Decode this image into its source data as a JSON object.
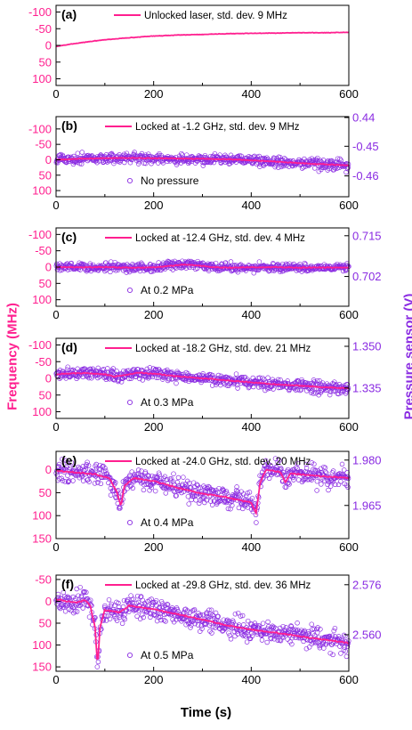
{
  "figure": {
    "xlabel": "Time (s)",
    "ylabel_left": "Frequency (MHz)",
    "ylabel_right": "Pressure sensor (V)",
    "colors": {
      "trace": "#ff1f8f",
      "scatter": "#8a2be2",
      "axis": "#000000"
    }
  },
  "chart_data": [
    {
      "type": "line",
      "panel_label": "(a)",
      "legend_line": "Unlocked laser, std. dev. 9 MHz",
      "x": [
        0,
        50,
        100,
        150,
        200,
        250,
        300,
        350,
        400,
        450,
        500,
        550,
        600
      ],
      "series": [
        {
          "values": [
            3,
            -8,
            -17,
            -23,
            -28,
            -31,
            -33,
            -35,
            -36,
            -37,
            -38,
            -38,
            -39
          ]
        }
      ],
      "xlim": [
        0,
        600
      ],
      "ylim": [
        120,
        -120
      ],
      "yticks": [
        -100,
        -50,
        0,
        50,
        100
      ],
      "xticks": [
        0,
        200,
        400,
        600
      ],
      "right_axis": null
    },
    {
      "type": "line",
      "panel_label": "(b)",
      "legend_line": "Locked at -1.2 GHz,  std. dev. 9 MHz",
      "legend_scatter": "No pressure",
      "x": [
        0,
        50,
        100,
        150,
        200,
        250,
        300,
        350,
        400,
        450,
        500,
        550,
        600
      ],
      "series": [
        {
          "values": [
            0,
            -3,
            -5,
            -6,
            -5,
            -4,
            -3,
            -2,
            2,
            6,
            11,
            15,
            18
          ]
        }
      ],
      "scatter_spread": 28,
      "xlim": [
        0,
        600
      ],
      "ylim": [
        120,
        -140
      ],
      "yticks": [
        -100,
        -50,
        0,
        50,
        100
      ],
      "xticks": [
        0,
        200,
        400,
        600
      ],
      "right_axis": {
        "ticks": [
          "0.44",
          "-0.45",
          "-0.46"
        ]
      }
    },
    {
      "type": "line",
      "panel_label": "(c)",
      "legend_line": "Locked at -12.4 GHz, std. dev. 4 MHz",
      "legend_scatter": "At 0.2 MPa",
      "x": [
        0,
        50,
        100,
        150,
        200,
        230,
        260,
        290,
        320,
        350,
        400,
        450,
        500,
        550,
        600
      ],
      "series": [
        {
          "values": [
            0,
            1,
            0,
            2,
            1,
            -3,
            -8,
            -5,
            0,
            2,
            1,
            0,
            2,
            1,
            2
          ]
        }
      ],
      "scatter_spread": 22,
      "xlim": [
        0,
        600
      ],
      "ylim": [
        120,
        -120
      ],
      "yticks": [
        -100,
        -50,
        0,
        50,
        100
      ],
      "xticks": [
        0,
        200,
        400,
        600
      ],
      "right_axis": {
        "ticks": [
          "0.715",
          "0.702"
        ]
      }
    },
    {
      "type": "line",
      "panel_label": "(d)",
      "legend_line": "Locked at -18.2 GHz, std. dev. 21 MHz",
      "legend_scatter": "At 0.3 MPa",
      "x": [
        0,
        30,
        60,
        100,
        120,
        140,
        170,
        200,
        250,
        300,
        350,
        400,
        450,
        500,
        550,
        600
      ],
      "series": [
        {
          "values": [
            -12,
            -15,
            -16,
            -12,
            -5,
            -10,
            -17,
            -14,
            -6,
            0,
            6,
            12,
            18,
            22,
            27,
            30
          ]
        }
      ],
      "scatter_spread": 30,
      "xlim": [
        0,
        600
      ],
      "ylim": [
        120,
        -120
      ],
      "yticks": [
        -100,
        -50,
        0,
        50,
        100
      ],
      "xticks": [
        0,
        200,
        400,
        600
      ],
      "right_axis": {
        "ticks": [
          "1.350",
          "1.335"
        ]
      }
    },
    {
      "type": "line",
      "panel_label": "(e)",
      "legend_line": "Locked at -24.0 GHz, std. dev. 20 MHz",
      "legend_scatter": "At 0.4 MPa",
      "x": [
        0,
        40,
        80,
        110,
        125,
        133,
        140,
        160,
        200,
        250,
        300,
        350,
        400,
        410,
        418,
        430,
        460,
        470,
        480,
        520,
        560,
        600
      ],
      "series": [
        {
          "values": [
            2,
            6,
            10,
            20,
            50,
            80,
            35,
            18,
            25,
            40,
            52,
            60,
            72,
            95,
            30,
            0,
            5,
            28,
            8,
            12,
            15,
            18
          ]
        }
      ],
      "scatter_spread": 40,
      "xlim": [
        0,
        600
      ],
      "ylim": [
        150,
        -40
      ],
      "yticks": [
        0,
        50,
        100,
        150
      ],
      "xticks": [
        0,
        200,
        400,
        600
      ],
      "right_axis": {
        "ticks": [
          "1.980",
          "1.965"
        ]
      }
    },
    {
      "type": "line",
      "panel_label": "(f)",
      "legend_line": "Locked at -29.8 GHz, std. dev. 36 MHz",
      "legend_scatter": "At 0.5 MPa",
      "x": [
        0,
        20,
        40,
        60,
        70,
        80,
        85,
        90,
        100,
        130,
        150,
        200,
        250,
        300,
        350,
        400,
        450,
        500,
        550,
        600
      ],
      "series": [
        {
          "values": [
            -5,
            0,
            3,
            -2,
            10,
            60,
            150,
            60,
            20,
            25,
            10,
            18,
            30,
            42,
            55,
            65,
            72,
            80,
            88,
            95
          ]
        }
      ],
      "scatter_spread": 45,
      "xlim": [
        0,
        600
      ],
      "ylim": [
        160,
        -60
      ],
      "yticks": [
        -50,
        0,
        50,
        100,
        150
      ],
      "xticks": [
        0,
        200,
        400,
        600
      ],
      "right_axis": {
        "ticks": [
          "2.576",
          "2.560"
        ]
      }
    }
  ]
}
